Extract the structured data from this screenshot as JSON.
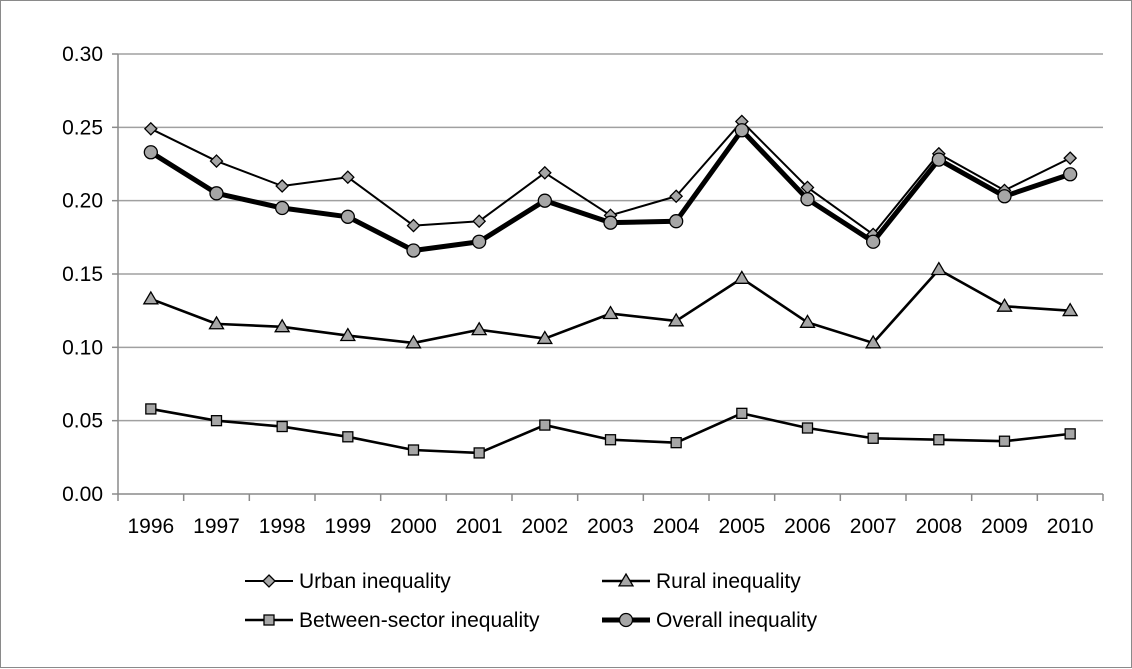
{
  "chart_data": {
    "type": "line",
    "title": "",
    "xlabel": "",
    "ylabel": "",
    "x": [
      "1996",
      "1997",
      "1998",
      "1999",
      "2000",
      "2001",
      "2002",
      "2003",
      "2004",
      "2005",
      "2006",
      "2007",
      "2008",
      "2009",
      "2010"
    ],
    "ylim": [
      0,
      0.3
    ],
    "yticks": [
      "0.00",
      "0.05",
      "0.10",
      "0.15",
      "0.20",
      "0.25",
      "0.30"
    ],
    "grid": "horizontal",
    "legend_position": "bottom",
    "series": [
      {
        "name": "Urban inequality",
        "marker": "diamond",
        "line_style": "thin",
        "values": [
          0.249,
          0.227,
          0.21,
          0.216,
          0.183,
          0.186,
          0.219,
          0.19,
          0.203,
          0.254,
          0.209,
          0.177,
          0.232,
          0.207,
          0.229
        ]
      },
      {
        "name": "Rural inequality",
        "marker": "triangle",
        "line_style": "medium",
        "values": [
          0.133,
          0.116,
          0.114,
          0.108,
          0.103,
          0.112,
          0.106,
          0.123,
          0.118,
          0.147,
          0.117,
          0.103,
          0.153,
          0.128,
          0.125
        ]
      },
      {
        "name": "Between-sector inequality",
        "marker": "square",
        "line_style": "medium",
        "values": [
          0.058,
          0.05,
          0.046,
          0.039,
          0.03,
          0.028,
          0.047,
          0.037,
          0.035,
          0.055,
          0.045,
          0.038,
          0.037,
          0.036,
          0.041
        ]
      },
      {
        "name": "Overall inequality",
        "marker": "circle",
        "line_style": "thick",
        "values": [
          0.233,
          0.205,
          0.195,
          0.189,
          0.166,
          0.172,
          0.2,
          0.185,
          0.186,
          0.248,
          0.201,
          0.172,
          0.228,
          0.203,
          0.218
        ]
      }
    ],
    "colors": {
      "line": "#000000",
      "marker_fill": "#a6a6a6",
      "grid": "#a0a0a0",
      "axis": "#8a8a8a"
    }
  }
}
